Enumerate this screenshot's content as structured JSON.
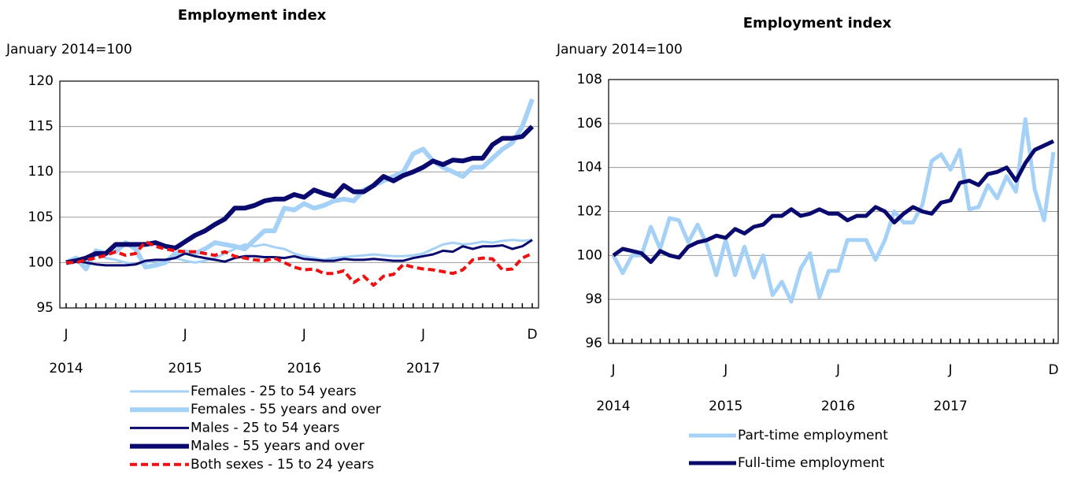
{
  "chart_data": [
    {
      "type": "line",
      "title": "Employment index",
      "y_label": "January 2014=100",
      "categories": [
        "J",
        null,
        null,
        null,
        null,
        null,
        null,
        null,
        null,
        null,
        null,
        null,
        "J",
        null,
        null,
        null,
        null,
        null,
        null,
        null,
        null,
        null,
        null,
        null,
        "J",
        null,
        null,
        null,
        null,
        null,
        null,
        null,
        null,
        null,
        null,
        null,
        "J",
        null,
        null,
        null,
        null,
        null,
        null,
        null,
        null,
        null,
        null,
        "D"
      ],
      "x_group_labels": [
        "2014",
        "2015",
        "2016",
        "2017"
      ],
      "ylim": [
        95,
        120
      ],
      "yticks": [
        95,
        100,
        105,
        110,
        115,
        120
      ],
      "grid": true,
      "legend": "bottom",
      "series": [
        {
          "name": "Females - 25 to 54 years",
          "color": "#a6d1f7",
          "line_width": 3,
          "dashed": false,
          "values": [
            100,
            100.5,
            100.3,
            100.8,
            100.5,
            100.3,
            100,
            99.8,
            100,
            100.2,
            100.3,
            100.5,
            100.2,
            100,
            100.2,
            100.5,
            101,
            101.5,
            102,
            101.8,
            102,
            101.7,
            101.5,
            101,
            100.7,
            100.5,
            100.3,
            100.5,
            100.6,
            100.7,
            100.8,
            100.9,
            100.8,
            100.7,
            100.7,
            100.8,
            101,
            101.5,
            102,
            102.2,
            102,
            102.1,
            102.3,
            102.2,
            102.4,
            102.5,
            102.4,
            102.5
          ]
        },
        {
          "name": "Females - 55 years and over",
          "color": "#a6d1f7",
          "line_width": 6,
          "dashed": false,
          "values": [
            100,
            100.5,
            99.3,
            101.3,
            101,
            101.2,
            102.2,
            101.5,
            99.5,
            99.7,
            100,
            101,
            101.2,
            101,
            101.5,
            102.2,
            102,
            101.8,
            101.5,
            102.5,
            103.5,
            103.5,
            106,
            105.8,
            106.5,
            106,
            106.3,
            106.8,
            107,
            106.8,
            108,
            108.5,
            109,
            109.5,
            110,
            112,
            112.5,
            111.2,
            110.5,
            110,
            109.5,
            110.5,
            110.5,
            111.5,
            112.5,
            113.2,
            115,
            118
          ]
        },
        {
          "name": "Males - 25 to 54 years",
          "color": "#0a0a6e",
          "line_width": 3,
          "dashed": false,
          "values": [
            100,
            100.2,
            100,
            99.8,
            99.7,
            99.7,
            99.7,
            99.8,
            100.2,
            100.3,
            100.3,
            100.5,
            101,
            100.7,
            100.5,
            100.3,
            100.1,
            100.5,
            100.7,
            100.7,
            100.6,
            100.6,
            100.5,
            100.7,
            100.4,
            100.3,
            100.2,
            100.2,
            100.4,
            100.3,
            100.3,
            100.4,
            100.3,
            100.2,
            100.2,
            100.5,
            100.7,
            100.9,
            101.3,
            101.2,
            101.8,
            101.5,
            101.8,
            101.8,
            101.9,
            101.5,
            101.8,
            102.5
          ]
        },
        {
          "name": "Males - 55 years and over",
          "color": "#0a0a6e",
          "line_width": 6,
          "dashed": false,
          "values": [
            100,
            100.2,
            100.5,
            101,
            101,
            102,
            102,
            102,
            102,
            102.2,
            101.8,
            101.6,
            102.3,
            103,
            103.5,
            104.2,
            104.8,
            106,
            106,
            106.3,
            106.8,
            107,
            107,
            107.5,
            107.2,
            108,
            107.6,
            107.3,
            108.5,
            107.8,
            107.8,
            108.5,
            109.5,
            109,
            109.6,
            110,
            110.5,
            111.2,
            110.8,
            111.3,
            111.2,
            111.5,
            111.5,
            113,
            113.7,
            113.7,
            113.9,
            115
          ]
        },
        {
          "name": "Both sexes - 15 to 24 years",
          "color": "#ee1111",
          "line_width": 4,
          "dashed": true,
          "values": [
            100,
            100,
            100.3,
            100.5,
            100.8,
            101.2,
            100.8,
            101,
            102.3,
            101.8,
            101.5,
            101.3,
            101.2,
            101.2,
            101,
            100.8,
            101.2,
            100.7,
            100.5,
            100.3,
            100.2,
            100.5,
            100,
            99.5,
            99.2,
            99.3,
            98.8,
            98.8,
            99.1,
            97.8,
            98.5,
            97.5,
            98.5,
            98.7,
            99.8,
            99.5,
            99.3,
            99.2,
            99,
            98.8,
            99.2,
            100.3,
            100.5,
            100.4,
            99.2,
            99.3,
            100.5,
            101
          ]
        }
      ]
    },
    {
      "type": "line",
      "title": "Employment index",
      "y_label": "January 2014=100",
      "categories": [
        "J",
        null,
        null,
        null,
        null,
        null,
        null,
        null,
        null,
        null,
        null,
        null,
        "J",
        null,
        null,
        null,
        null,
        null,
        null,
        null,
        null,
        null,
        null,
        null,
        "J",
        null,
        null,
        null,
        null,
        null,
        null,
        null,
        null,
        null,
        null,
        null,
        "J",
        null,
        null,
        null,
        null,
        null,
        null,
        null,
        null,
        null,
        null,
        "D"
      ],
      "x_group_labels": [
        "2014",
        "2015",
        "2016",
        "2017"
      ],
      "ylim": [
        96,
        108
      ],
      "yticks": [
        96,
        98,
        100,
        102,
        104,
        106,
        108
      ],
      "grid": true,
      "legend": "bottom",
      "series": [
        {
          "name": "Part-time employment",
          "color": "#a6d1f7",
          "line_width": 5,
          "dashed": false,
          "values": [
            100,
            99.2,
            100,
            100,
            101.3,
            100.3,
            101.7,
            101.6,
            100.6,
            101.4,
            100.5,
            99.1,
            100.7,
            99.1,
            100.4,
            99,
            100,
            98.2,
            98.8,
            97.9,
            99.4,
            100.1,
            98.1,
            99.3,
            99.3,
            100.7,
            100.7,
            100.7,
            99.8,
            100.7,
            102,
            101.5,
            101.5,
            102.3,
            104.3,
            104.6,
            103.9,
            104.8,
            102.1,
            102.2,
            103.2,
            102.6,
            103.6,
            102.9,
            106.2,
            103,
            101.6,
            104.7
          ]
        },
        {
          "name": "Full-time employment",
          "color": "#0a0a6e",
          "line_width": 5,
          "dashed": false,
          "values": [
            100,
            100.3,
            100.2,
            100.1,
            99.7,
            100.2,
            100,
            99.9,
            100.4,
            100.6,
            100.7,
            100.9,
            100.8,
            101.2,
            101,
            101.3,
            101.4,
            101.8,
            101.8,
            102.1,
            101.8,
            101.9,
            102.1,
            101.9,
            101.9,
            101.6,
            101.8,
            101.8,
            102.2,
            102,
            101.5,
            101.9,
            102.2,
            102,
            101.9,
            102.4,
            102.5,
            103.3,
            103.4,
            103.2,
            103.7,
            103.8,
            104,
            103.4,
            104.2,
            104.8,
            105,
            105.2
          ]
        }
      ]
    }
  ]
}
